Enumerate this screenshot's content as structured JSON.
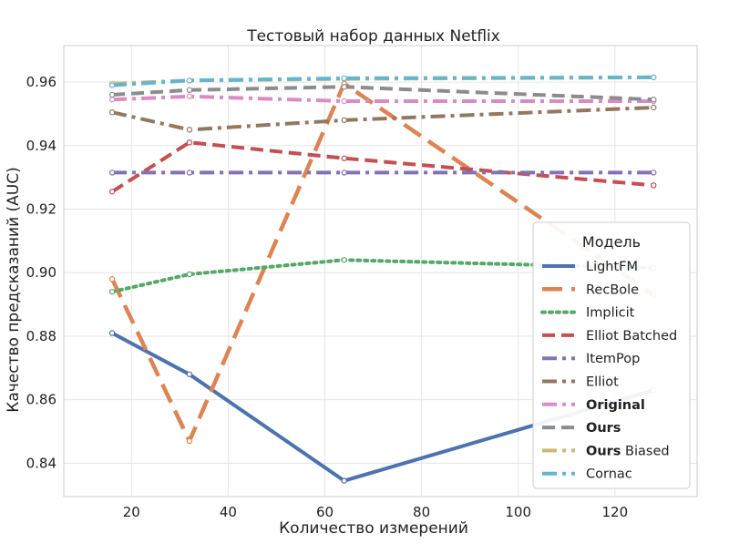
{
  "chart_data": {
    "type": "line",
    "title": "Тестовый набор данных Netflix",
    "xlabel": "Количество измерений",
    "ylabel": "Качество предсказаний (AUC)",
    "x": [
      16,
      32,
      64,
      128
    ],
    "xlim": [
      6,
      137
    ],
    "ylim": [
      0.8295,
      0.9715
    ],
    "xticks": [
      20,
      40,
      60,
      80,
      100,
      120
    ],
    "yticks": [
      0.84,
      0.86,
      0.88,
      0.9,
      0.92,
      0.94,
      0.96
    ],
    "ytick_labels": [
      "0.84",
      "0.86",
      "0.88",
      "0.90",
      "0.92",
      "0.94",
      "0.96"
    ],
    "grid": true,
    "legend": {
      "title": "Модель",
      "placement": "center-right"
    },
    "series": [
      {
        "name": "LightFM",
        "name_bold": "",
        "values": [
          0.881,
          0.868,
          0.8345,
          0.863
        ],
        "color": "#4c72b0",
        "dash": "solid",
        "width": 4
      },
      {
        "name": "RecBole",
        "name_bold": "",
        "values": [
          0.898,
          0.847,
          0.9595,
          0.893
        ],
        "color": "#dd8452",
        "dash": "long",
        "width": 4.5
      },
      {
        "name": "Implicit",
        "name_bold": "",
        "values": [
          0.894,
          0.8995,
          0.904,
          0.9015
        ],
        "color": "#55a868",
        "dash": "dot",
        "width": 4
      },
      {
        "name": "Elliot Batched",
        "name_bold": "",
        "values": [
          0.9255,
          0.941,
          0.936,
          0.9275
        ],
        "color": "#c44e52",
        "dash": "dash",
        "width": 4
      },
      {
        "name": "ItemPop",
        "name_bold": "",
        "values": [
          0.9315,
          0.9315,
          0.9315,
          0.9315
        ],
        "color": "#8172b3",
        "dash": "dashdot",
        "width": 4
      },
      {
        "name": "Elliot",
        "name_bold": "",
        "values": [
          0.9505,
          0.945,
          0.948,
          0.952
        ],
        "color": "#937860",
        "dash": "dashdot",
        "width": 4
      },
      {
        "name": "",
        "name_bold": "Original",
        "values": [
          0.9545,
          0.9555,
          0.954,
          0.954
        ],
        "color": "#da8bc3",
        "dash": "dashdot",
        "width": 4
      },
      {
        "name": "",
        "name_bold": "Ours",
        "values": [
          0.956,
          0.9575,
          0.9585,
          0.9545
        ],
        "color": "#8c8c8c",
        "dash": "dash",
        "width": 4
      },
      {
        "name": " Biased",
        "name_bold": "Ours",
        "values": [
          0.9595,
          0.9605,
          0.961,
          0.9615
        ],
        "color": "#ccb974",
        "dash": "dashdot",
        "width": 4
      },
      {
        "name": "Cornac",
        "name_bold": "",
        "values": [
          0.959,
          0.9605,
          0.9612,
          0.9615
        ],
        "color": "#64b5cd",
        "dash": "dashdot",
        "width": 4
      }
    ]
  }
}
